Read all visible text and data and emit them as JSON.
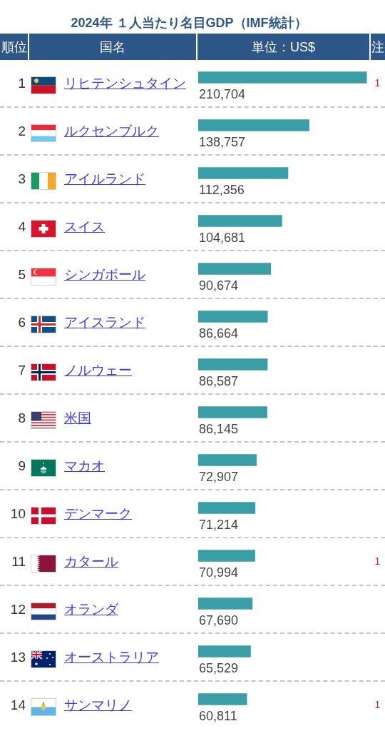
{
  "chart_data": {
    "type": "bar",
    "orientation": "horizontal",
    "title": "2024年 １人当たり名目GDP（IMF統計）",
    "xlabel": "単位：US$",
    "ylabel": "国名",
    "categories": [
      "リヒテンシュタイン",
      "ルクセンブルク",
      "アイルランド",
      "スイス",
      "シンガポール",
      "アイスランド",
      "ノルウェー",
      "米国",
      "マカオ",
      "デンマーク",
      "カタール",
      "オランダ",
      "オーストラリア",
      "サンマリノ"
    ],
    "values": [
      210704,
      138757,
      112356,
      104681,
      90674,
      86664,
      86587,
      86145,
      72907,
      71214,
      70994,
      67690,
      65529,
      60811
    ],
    "value_labels": [
      "210,704",
      "138,757",
      "112,356",
      "104,681",
      "90,674",
      "86,664",
      "86,587",
      "86,145",
      "72,907",
      "71,214",
      "70,994",
      "67,690",
      "65,529",
      "60,811"
    ],
    "color": "#3a9ea7",
    "annotations": [
      "順位",
      "注",
      "1",
      "2",
      "3",
      "4",
      "5",
      "6",
      "7",
      "8",
      "9",
      "10",
      "11",
      "12",
      "13",
      "14",
      "1",
      "1",
      "1"
    ]
  }
}
